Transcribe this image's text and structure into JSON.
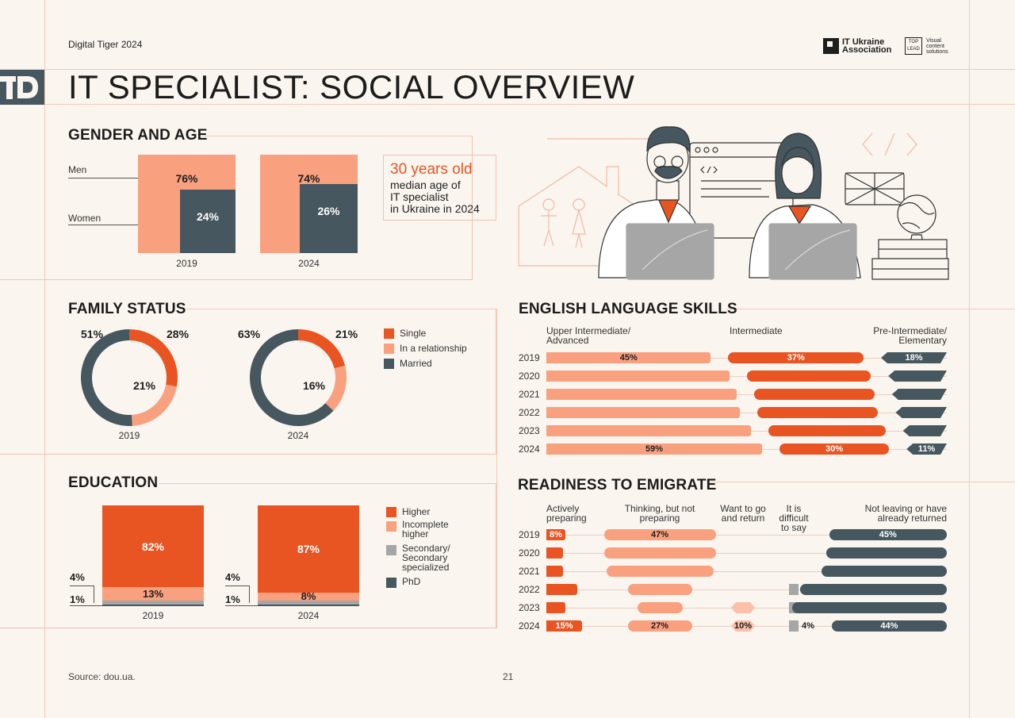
{
  "header": {
    "brand_left": "Digital Tiger 2024",
    "logo_it": "IT Ukraine Association",
    "logo_it_line1": "IT Ukraine",
    "logo_it_line2": "Association",
    "logo_top_line1": "TOP",
    "logo_top_line2": "LEAD",
    "logo_visual_line1": "Visual",
    "logo_visual_line2": "content",
    "logo_visual_line3": "solutions",
    "title": "IT SPECIALIST: SOCIAL OVERVIEW"
  },
  "footer": {
    "source": "Source: dou.ua.",
    "page_number": "21"
  },
  "colors": {
    "dark_orange": "#e85422",
    "salmon": "#f9a07f",
    "slate": "#46575f",
    "gray": "#a6a6a6",
    "light_salmon": "#fac0aa"
  },
  "illustration": {
    "icons": [
      "code-window-icon",
      "uk-flag-icon",
      "globe-icon",
      "books-icon",
      "house-icon",
      "code-brackets-icon"
    ]
  },
  "chart_data": [
    {
      "id": "gender",
      "type": "bar",
      "title": "GENDER AND AGE",
      "categories": [
        "2019",
        "2024"
      ],
      "series": [
        {
          "name": "Men",
          "values": [
            76,
            74
          ],
          "labels": [
            "76%",
            "74%"
          ]
        },
        {
          "name": "Women",
          "values": [
            24,
            26
          ],
          "labels": [
            "24%",
            "26%"
          ]
        }
      ],
      "callout": {
        "highlight": "30 years old",
        "lines": [
          "median age of",
          "IT specialist",
          "in Ukraine in 2024"
        ]
      }
    },
    {
      "id": "family",
      "type": "pie",
      "title": "FAMILY STATUS",
      "legend": [
        "Single",
        "In a relationship",
        "Married"
      ],
      "charts": [
        {
          "year": "2019",
          "values": [
            28,
            21,
            51
          ],
          "labels": [
            "28%",
            "21%",
            "51%"
          ]
        },
        {
          "year": "2024",
          "values": [
            21,
            16,
            63
          ],
          "labels": [
            "21%",
            "16%",
            "63%"
          ]
        }
      ]
    },
    {
      "id": "education",
      "type": "bar",
      "title": "EDUCATION",
      "legend": [
        "Higher",
        "Incomplete higher",
        "Secondary/ Secondary specialized",
        "PhD"
      ],
      "legend_lines": [
        [
          "Higher"
        ],
        [
          "Incomplete",
          "higher"
        ],
        [
          "Secondary/",
          "Secondary",
          "specialized"
        ],
        [
          "PhD"
        ]
      ],
      "charts": [
        {
          "year": "2019",
          "values": [
            82,
            13,
            4,
            1
          ],
          "labels": [
            "82%",
            "13%",
            "4%",
            "1%"
          ]
        },
        {
          "year": "2024",
          "values": [
            87,
            8,
            4,
            1
          ],
          "labels": [
            "87%",
            "8%",
            "4%",
            "1%"
          ]
        }
      ]
    },
    {
      "id": "english",
      "type": "bar",
      "title": "ENGLISH LANGUAGE SKILLS",
      "column_headers": [
        [
          "Upper Intermediate/",
          "Advanced"
        ],
        [
          "Intermediate"
        ],
        [
          "Pre-Intermediate/",
          "Elementary"
        ]
      ],
      "rows": [
        {
          "year": "2019",
          "values": [
            45,
            37,
            18
          ],
          "labels": [
            "45%",
            "37%",
            "18%"
          ]
        },
        {
          "year": "2020",
          "values": [
            50,
            34,
            16
          ],
          "labels": [
            "",
            "",
            ""
          ]
        },
        {
          "year": "2021",
          "values": [
            52,
            33,
            15
          ],
          "labels": [
            "",
            "",
            ""
          ]
        },
        {
          "year": "2022",
          "values": [
            53,
            33,
            14
          ],
          "labels": [
            "",
            "",
            ""
          ]
        },
        {
          "year": "2023",
          "values": [
            56,
            32,
            12
          ],
          "labels": [
            "",
            "",
            ""
          ]
        },
        {
          "year": "2024",
          "values": [
            59,
            30,
            11
          ],
          "labels": [
            "59%",
            "30%",
            "11%"
          ]
        }
      ]
    },
    {
      "id": "emigrate",
      "type": "bar",
      "title": "READINESS TO EMIGRATE",
      "column_headers": [
        [
          "Actively",
          "preparing"
        ],
        [
          "Thinking, but not",
          "preparing"
        ],
        [
          "Want to go",
          "and return"
        ],
        [
          "It is",
          "difficult",
          "to say"
        ],
        [
          "Not leaving or have",
          "already returned"
        ]
      ],
      "rows": [
        {
          "year": "2019",
          "values": [
            8,
            47,
            0,
            0,
            45
          ],
          "labels": [
            "8%",
            "47%",
            "",
            "",
            "45%"
          ]
        },
        {
          "year": "2020",
          "values": [
            7,
            47,
            0,
            0,
            46
          ],
          "labels": [
            "",
            "",
            "",
            "",
            ""
          ]
        },
        {
          "year": "2021",
          "values": [
            7,
            45,
            0,
            0,
            48
          ],
          "labels": [
            "",
            "",
            "",
            "",
            ""
          ]
        },
        {
          "year": "2022",
          "values": [
            13,
            27,
            0,
            4,
            56
          ],
          "labels": [
            "",
            "",
            "",
            "",
            ""
          ]
        },
        {
          "year": "2023",
          "values": [
            8,
            19,
            10,
            4,
            59
          ],
          "labels": [
            "",
            "",
            "",
            "",
            ""
          ]
        },
        {
          "year": "2024",
          "values": [
            15,
            27,
            10,
            4,
            44
          ],
          "labels": [
            "15%",
            "27%",
            "10%",
            "4%",
            "44%"
          ]
        }
      ]
    }
  ]
}
